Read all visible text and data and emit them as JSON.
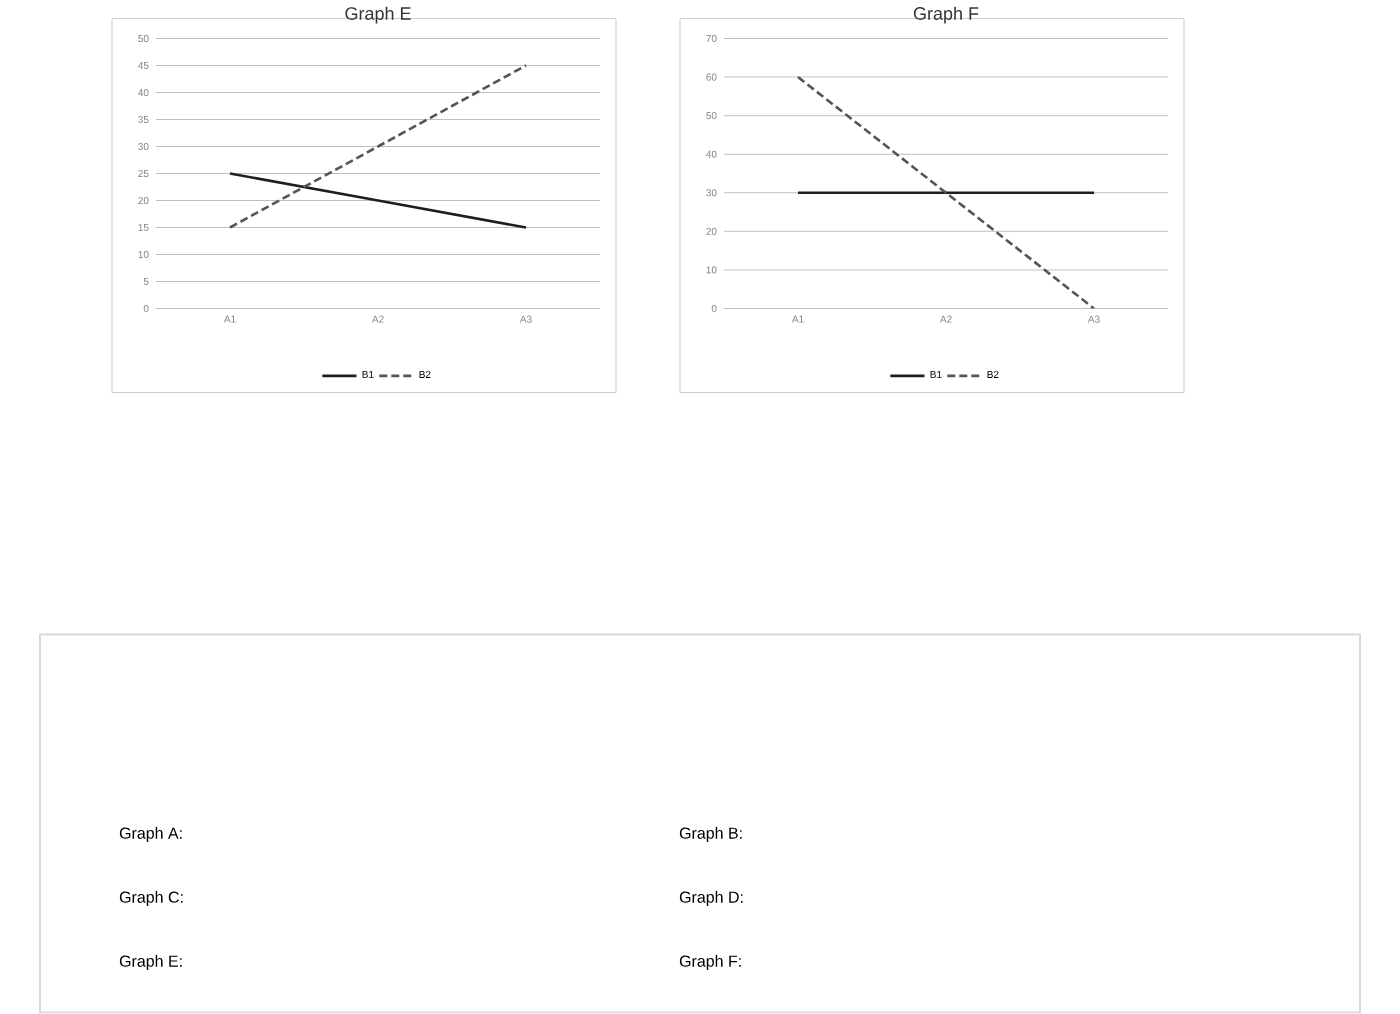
{
  "chart_data": [
    {
      "type": "line",
      "title": "Graph E",
      "categories": [
        "A1",
        "A2",
        "A3"
      ],
      "series": [
        {
          "name": "B1",
          "color": "#1e1e1e",
          "line_style": "solid",
          "values": [
            25,
            20,
            15
          ]
        },
        {
          "name": "B2",
          "color": "#555555",
          "line_style": "dashed",
          "values": [
            15,
            30,
            45
          ]
        }
      ],
      "ylim": [
        0,
        50
      ],
      "yticks": [
        0,
        5,
        10,
        15,
        20,
        25,
        30,
        35,
        40,
        45,
        50
      ],
      "grid": "y",
      "legend": "bottom"
    },
    {
      "type": "line",
      "title": "Graph F",
      "categories": [
        "A1",
        "A2",
        "A3"
      ],
      "series": [
        {
          "name": "B1",
          "color": "#1e1e1e",
          "line_style": "solid",
          "values": [
            30,
            30,
            30
          ]
        },
        {
          "name": "B2",
          "color": "#555555",
          "line_style": "dashed",
          "values": [
            60,
            30,
            0
          ]
        }
      ],
      "ylim": [
        0,
        70
      ],
      "yticks": [
        0,
        10,
        20,
        30,
        40,
        50,
        60,
        70
      ],
      "grid": "y",
      "legend": "bottom"
    },
    {
      "type": "other",
      "annotations": [
        "Graph A:",
        "Graph B:",
        "Graph C:",
        "Graph D:",
        "Graph E:",
        "Graph F:"
      ]
    }
  ]
}
